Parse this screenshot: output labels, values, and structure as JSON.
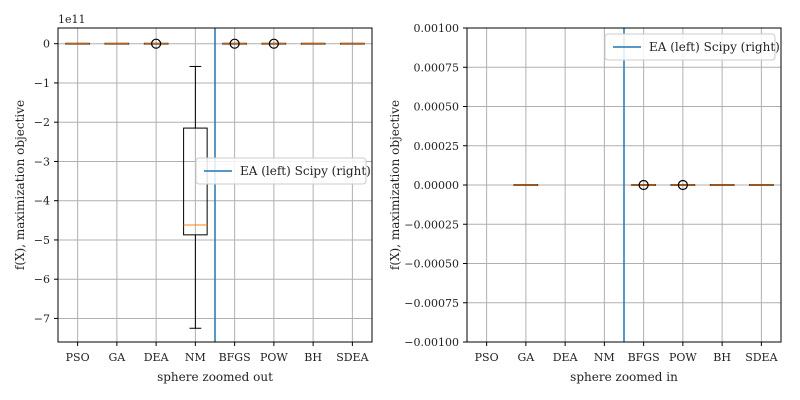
{
  "chart_data": [
    {
      "type": "box",
      "id": "left",
      "xlabel": "sphere zoomed out",
      "ylabel": "f(X), maximization objective",
      "exponent_label": "1e11",
      "ylim": [
        -7.6,
        0.4
      ],
      "yticks": [
        0,
        -1,
        -2,
        -3,
        -4,
        -5,
        -6,
        -7
      ],
      "ytick_labels": [
        "0",
        "−1",
        "−2",
        "−3",
        "−4",
        "−5",
        "−6",
        "−7"
      ],
      "categories": [
        "PSO",
        "GA",
        "DEA",
        "NM",
        "BFGS",
        "POW",
        "BH",
        "SDEA"
      ],
      "boxes": [
        {
          "q1": 0,
          "median": 0,
          "q3": 0,
          "whislo": 0,
          "whishi": 0,
          "fliers": []
        },
        {
          "q1": 0,
          "median": 0,
          "q3": 0,
          "whislo": 0,
          "whishi": 0,
          "fliers": []
        },
        {
          "q1": 0,
          "median": 0,
          "q3": 0,
          "whislo": 0,
          "whishi": 0,
          "fliers": [
            0
          ]
        },
        {
          "q1": -4.87,
          "median": -4.62,
          "q3": -2.15,
          "whislo": -7.25,
          "whishi": -0.58,
          "fliers": []
        },
        {
          "q1": 0,
          "median": 0,
          "q3": 0,
          "whislo": 0,
          "whishi": 0,
          "fliers": [
            0
          ]
        },
        {
          "q1": 0,
          "median": 0,
          "q3": 0,
          "whislo": 0,
          "whishi": 0,
          "fliers": [
            0
          ]
        },
        {
          "q1": 0,
          "median": 0,
          "q3": 0,
          "whislo": 0,
          "whishi": 0,
          "fliers": []
        },
        {
          "q1": 0,
          "median": 0,
          "q3": 0,
          "whislo": 0,
          "whishi": 0,
          "fliers": []
        }
      ],
      "divider_x": 3.5,
      "legend": {
        "label": "EA (left) Scipy (right)",
        "placement": "center-right"
      }
    },
    {
      "type": "box",
      "id": "right",
      "xlabel": "sphere zoomed in",
      "ylabel": "f(X), maximization objective",
      "ylim": [
        -0.001,
        0.001
      ],
      "yticks": [
        0.001,
        0.00075,
        0.0005,
        0.00025,
        0,
        -0.00025,
        -0.0005,
        -0.00075,
        -0.001
      ],
      "ytick_labels": [
        "0.00100",
        "0.00075",
        "0.00050",
        "0.00025",
        "0.00000",
        "−0.00025",
        "−0.00050",
        "−0.00075",
        "−0.00100"
      ],
      "categories": [
        "PSO",
        "GA",
        "DEA",
        "NM",
        "BFGS",
        "POW",
        "BH",
        "SDEA"
      ],
      "boxes": [
        null,
        {
          "q1": 0,
          "median": 0,
          "q3": 0,
          "whislo": 0,
          "whishi": 0,
          "fliers": []
        },
        null,
        null,
        {
          "q1": 0,
          "median": 0,
          "q3": 0,
          "whislo": 0,
          "whishi": 0,
          "fliers": [
            0
          ]
        },
        {
          "q1": 0,
          "median": 0,
          "q3": 0,
          "whislo": 0,
          "whishi": 0,
          "fliers": [
            0
          ]
        },
        {
          "q1": 0,
          "median": 0,
          "q3": 0,
          "whislo": 0,
          "whishi": 0,
          "fliers": []
        },
        {
          "q1": 0,
          "median": 0,
          "q3": 0,
          "whislo": 0,
          "whishi": 0,
          "fliers": []
        }
      ],
      "divider_x": 3.5,
      "legend": {
        "label": "EA (left) Scipy (right)",
        "placement": "top-right"
      }
    }
  ],
  "colors": {
    "divider": "#1f77b4",
    "median": "#ff7f0e",
    "grid": "#b0b0b0",
    "box": "#000000"
  }
}
